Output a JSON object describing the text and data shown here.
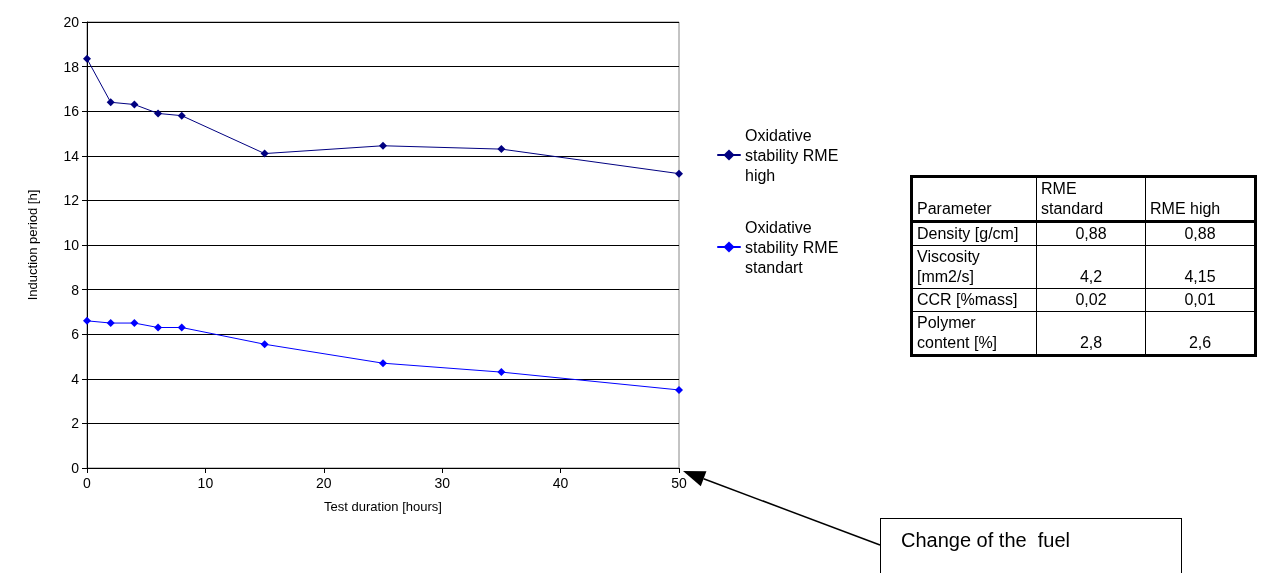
{
  "chart_data": [
    {
      "type": "line",
      "xlabel": "Test duration [hours]",
      "ylabel": "Induction period [h]",
      "x": [
        0,
        2,
        4,
        6,
        8,
        15,
        25,
        35,
        50
      ],
      "series": [
        {
          "name": "Oxidative stability RME high",
          "color": "#000080",
          "values": [
            18.35,
            16.4,
            16.3,
            15.9,
            15.8,
            14.1,
            14.45,
            14.3,
            13.2
          ]
        },
        {
          "name": "Oxidative stability RME standart",
          "color": "#0000ff",
          "values": [
            6.6,
            6.5,
            6.5,
            6.3,
            6.3,
            5.55,
            4.7,
            4.3,
            3.5
          ]
        }
      ],
      "xlim": [
        0,
        50
      ],
      "xticks": [
        0,
        10,
        20,
        30,
        40,
        50
      ],
      "ylim": [
        0,
        20
      ],
      "yticks": [
        0,
        2,
        4,
        6,
        8,
        10,
        12,
        14,
        16,
        18,
        20
      ],
      "grid": "y",
      "legend": "right",
      "marker": "diamond",
      "line_style": "solid",
      "annotations": [
        "Change of the  fuel"
      ]
    },
    {
      "type": "other",
      "categories": [
        "Parameter",
        "RME standard",
        "RME high"
      ],
      "y_categories": [
        "Density [g/cm]",
        "Viscosity [mm2/s]",
        "CCR [%mass]",
        "Polymer content [%]"
      ],
      "cell_labels": [
        [
          "0,88",
          "0,88"
        ],
        [
          "4,2",
          "4,15"
        ],
        [
          "0,02",
          "0,01"
        ],
        [
          "2,8",
          "2,6"
        ]
      ]
    }
  ]
}
